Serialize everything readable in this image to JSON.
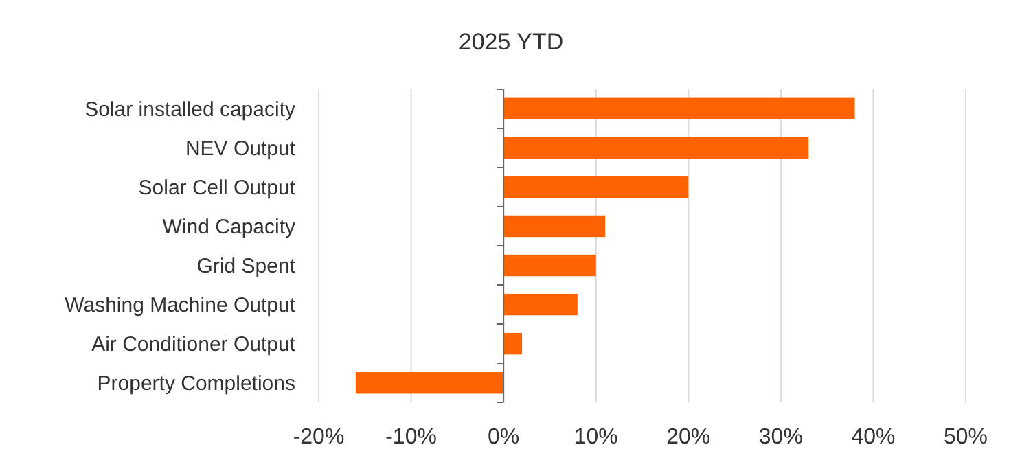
{
  "chart_data": {
    "type": "bar",
    "title": "2025 YTD",
    "orientation": "horizontal",
    "categories": [
      "Solar installed capacity",
      "NEV Output",
      "Solar Cell Output",
      "Wind Capacity",
      "Grid Spent",
      "Washing Machine Output",
      "Air Conditioner Output",
      "Property Completions"
    ],
    "values": [
      38,
      33,
      20,
      11,
      10,
      8,
      2,
      -16
    ],
    "color": "#ff6200",
    "xlim": [
      -20,
      50
    ],
    "xticks": [
      {
        "value": -20,
        "label": "-20%"
      },
      {
        "value": -10,
        "label": "-10%"
      },
      {
        "value": 0,
        "label": "0%"
      },
      {
        "value": 10,
        "label": "10%"
      },
      {
        "value": 20,
        "label": "20%"
      },
      {
        "value": 30,
        "label": "30%"
      },
      {
        "value": 40,
        "label": "40%"
      },
      {
        "value": 50,
        "label": "50%"
      }
    ],
    "grid": "x"
  }
}
